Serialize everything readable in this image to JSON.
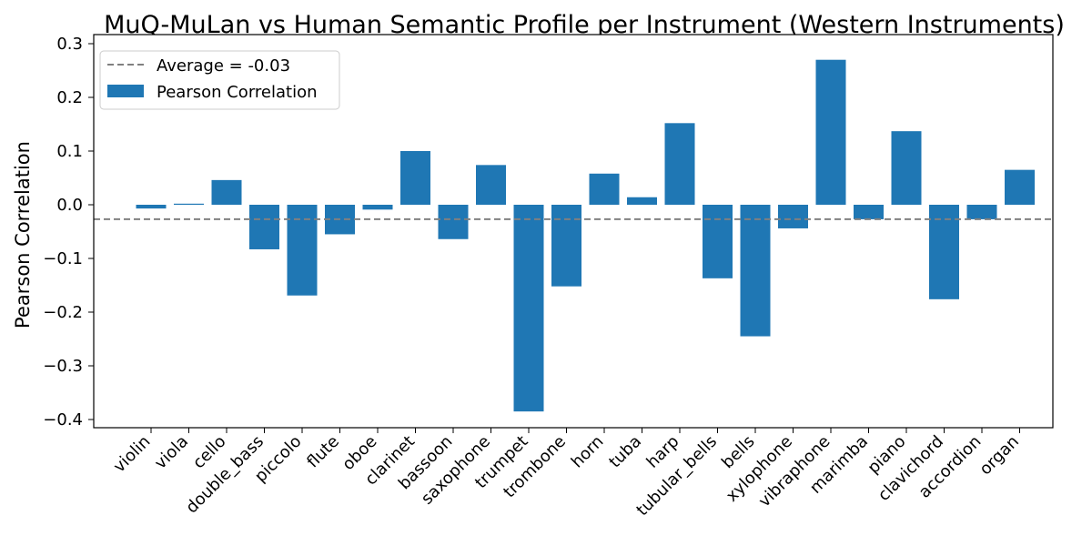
{
  "chart_data": {
    "type": "bar",
    "title": "MuQ-MuLan vs Human Semantic Profile per Instrument (Western Instruments)",
    "xlabel": "",
    "ylabel": "Pearson Correlation",
    "ylim": [
      -0.415,
      0.31
    ],
    "yticks": [
      -0.4,
      -0.3,
      -0.2,
      -0.1,
      0.0,
      0.1,
      0.2,
      0.3
    ],
    "ytick_labels": [
      "−0.4",
      "−0.3",
      "−0.2",
      "−0.1",
      "0.0",
      "0.1",
      "0.2",
      "0.3"
    ],
    "grid": false,
    "legend_position": "upper-left",
    "categories": [
      "violin",
      "viola",
      "cello",
      "double_bass",
      "piccolo",
      "flute",
      "oboe",
      "clarinet",
      "bassoon",
      "saxophone",
      "trumpet",
      "trombone",
      "horn",
      "tuba",
      "harp",
      "tubular_bells",
      "bells",
      "xylophone",
      "vibraphone",
      "marimba",
      "piano",
      "clavichord",
      "accordion",
      "organ"
    ],
    "series": [
      {
        "name": "Pearson Correlation",
        "color": "#1f77b4",
        "values": [
          -0.007,
          0.002,
          0.046,
          -0.083,
          -0.169,
          -0.055,
          -0.009,
          0.1,
          -0.064,
          0.074,
          -0.385,
          -0.152,
          0.058,
          0.014,
          0.152,
          -0.137,
          -0.245,
          -0.044,
          0.27,
          -0.027,
          0.137,
          -0.176,
          -0.027,
          0.065
        ]
      }
    ],
    "reference_line": {
      "label": "Average = -0.03",
      "value": -0.027,
      "color": "#808080",
      "style": "dashed"
    }
  }
}
